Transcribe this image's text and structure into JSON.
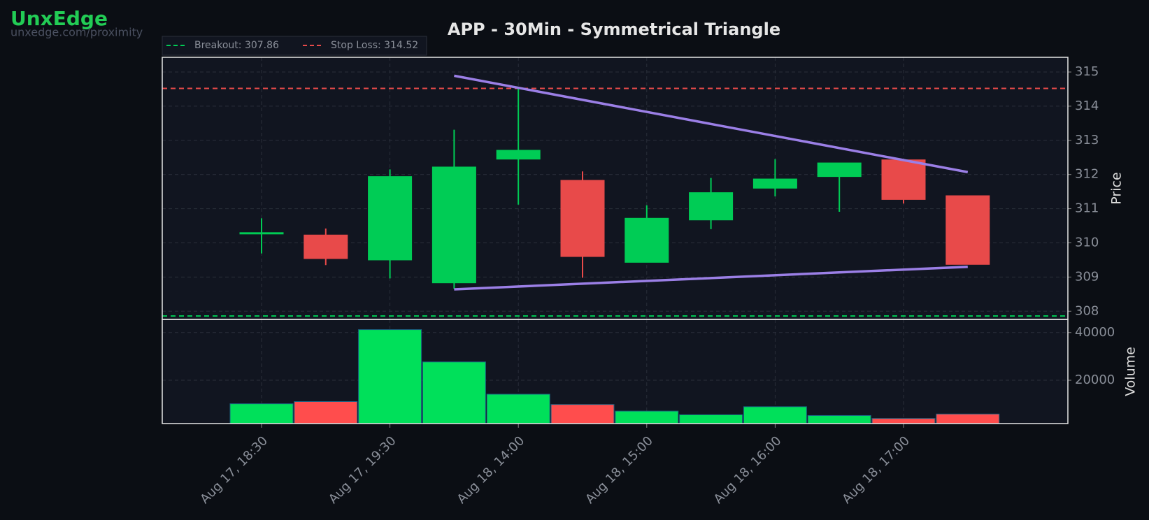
{
  "brand": {
    "name": "UnxEdge",
    "url": "unxedge.com/proximity"
  },
  "chart_data": [
    {
      "type": "candlestick",
      "title": "APP - 30Min - Symmetrical Triangle",
      "ylabel": "Price",
      "categories": [
        "Aug 17, 18:30",
        null,
        "Aug 17, 19:30",
        null,
        "Aug 18, 14:00",
        null,
        "Aug 18, 15:00",
        null,
        "Aug 18, 16:00",
        null,
        "Aug 18, 17:00",
        null
      ],
      "open": [
        310.28,
        310.23,
        309.5,
        308.83,
        312.45,
        311.83,
        309.43,
        310.67,
        311.6,
        311.94,
        312.43,
        311.38
      ],
      "high": [
        310.72,
        310.42,
        312.15,
        313.31,
        314.55,
        312.09,
        311.1,
        311.9,
        312.45,
        312.34,
        312.43,
        311.38
      ],
      "low": [
        309.69,
        309.35,
        308.96,
        308.66,
        311.12,
        308.98,
        309.43,
        310.4,
        311.36,
        310.91,
        311.15,
        309.37
      ],
      "close": [
        310.3,
        309.54,
        311.94,
        312.22,
        312.71,
        309.6,
        310.72,
        311.47,
        311.87,
        312.34,
        311.27,
        309.37
      ],
      "up_color": "#00cc55",
      "down_color": "#e84a4a",
      "ylim": [
        307.76,
        315.43
      ],
      "yticks": [
        308,
        309,
        310,
        311,
        312,
        313,
        314,
        315
      ],
      "grid": true,
      "hlines": [
        {
          "name": "Breakout: 307.86",
          "value": 307.86,
          "color": "#00cc55"
        },
        {
          "name": "Stop Loss: 314.52",
          "value": 314.52,
          "color": "#e84a4a"
        }
      ],
      "trendlines": [
        {
          "x": [
            3,
            11
          ],
          "y": [
            314.89,
            312.07
          ],
          "color": "#9b7fe6"
        },
        {
          "x": [
            3,
            11
          ],
          "y": [
            308.64,
            309.3
          ],
          "color": "#9b7fe6"
        }
      ]
    },
    {
      "type": "bar",
      "ylabel": "Volume",
      "values": [
        10150,
        11080,
        41230,
        27690,
        14150,
        9850,
        7080,
        5540,
        8920,
        5230,
        4000,
        5850
      ],
      "colors": [
        "#00e05a",
        "#ff4d4d",
        "#00e05a",
        "#00e05a",
        "#00e05a",
        "#ff4d4d",
        "#00e05a",
        "#00e05a",
        "#00e05a",
        "#00e05a",
        "#ff4d4d",
        "#ff4d4d"
      ],
      "ylim": [
        1850,
        45500
      ],
      "yticks": [
        20000,
        40000
      ],
      "grid": true
    }
  ]
}
